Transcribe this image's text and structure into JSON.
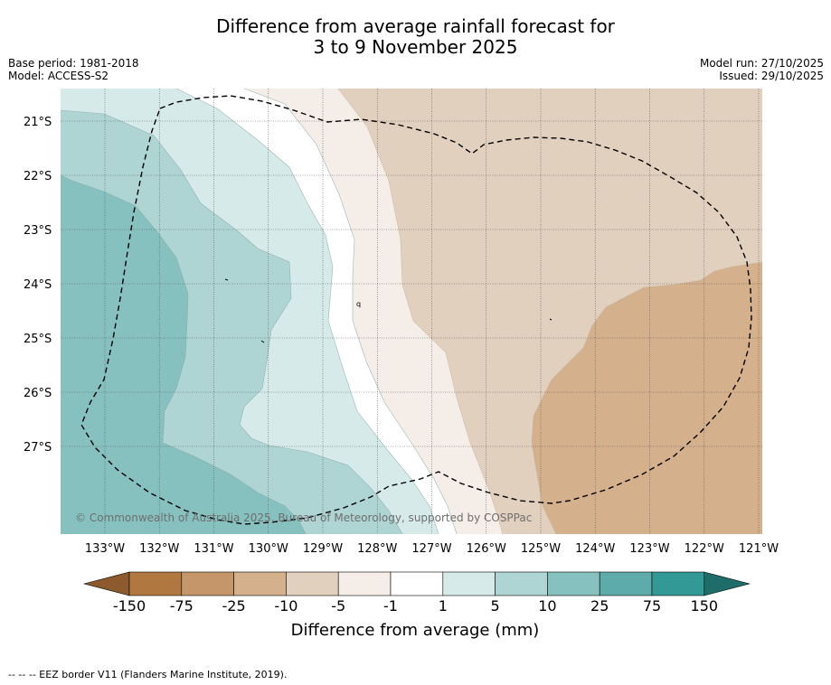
{
  "title": {
    "line1": "Difference from average rainfall forecast for",
    "line2": "3 to 9 November 2025"
  },
  "meta_left": {
    "base_period": "Base period: 1981-2018",
    "model": "Model: ACCESS-S2"
  },
  "meta_right": {
    "model_run": "Model run: 27/10/2025",
    "issued": "Issued: 29/10/2025"
  },
  "map": {
    "lat_labels": [
      "21°S",
      "22°S",
      "23°S",
      "24°S",
      "25°S",
      "26°S",
      "27°S"
    ],
    "lon_labels": [
      "133°W",
      "132°W",
      "131°W",
      "130°W",
      "129°W",
      "128°W",
      "127°W",
      "126°W",
      "125°W",
      "124°W",
      "123°W",
      "122°W",
      "121°W"
    ],
    "copyright": "© Commonwealth of Australia 2025, Bureau of Meteorology, supported by COSPPac",
    "island_label": "q"
  },
  "colorbar": {
    "tick_labels": [
      "-150",
      "-75",
      "-25",
      "-10",
      "-5",
      "-1",
      "1",
      "5",
      "10",
      "25",
      "75",
      "150"
    ],
    "colors": [
      "#8c5a2d",
      "#b07840",
      "#c4966a",
      "#d4b08c",
      "#e2d0bf",
      "#f4ede8",
      "#ffffff",
      "#d6eae9",
      "#aed5d4",
      "#86c1c0",
      "#5dacab",
      "#339996",
      "#1f6d6b"
    ],
    "label": "Difference from average (mm)"
  },
  "footnote": "--  --  -- EEZ border V11 (Flanders Marine Institute, 2019)."
}
